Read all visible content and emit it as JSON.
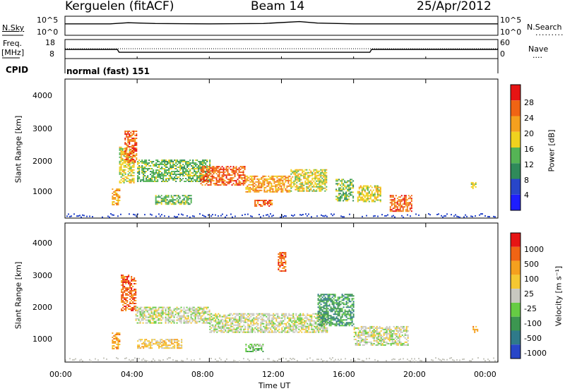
{
  "header": {
    "station": "Kerguelen (fitACF)",
    "beam": "Beam 14",
    "date": "25/Apr/2012"
  },
  "noise_panel": {
    "left_label": "N.Sky",
    "right_label": "N.Search",
    "left_ticks": [
      "10^5",
      "10^0"
    ],
    "right_ticks": [
      "10^5",
      "10^0"
    ]
  },
  "freq_panel": {
    "left_label_top": "Freq.",
    "left_label_bottom": "[MHz]",
    "left_ticks": [
      "18",
      "8"
    ],
    "right_label": "Nave",
    "right_ticks": [
      "60",
      "0"
    ]
  },
  "cpid": {
    "label": "CPID",
    "value": "normal (fast) 151"
  },
  "power_panel": {
    "ylabel": "Slant Range [km]",
    "yticks": [
      "4000",
      "3000",
      "2000",
      "1000"
    ],
    "colorbar_label": "Power [dB]",
    "colorbar_ticks": [
      "28",
      "24",
      "20",
      "16",
      "12",
      "8",
      "4"
    ],
    "colors": [
      "#1e1eff",
      "#2846c8",
      "#2f8a5a",
      "#55b455",
      "#f0d21e",
      "#f5a01e",
      "#f06414",
      "#e61414"
    ]
  },
  "velocity_panel": {
    "ylabel": "Slant Range [km]",
    "yticks": [
      "4000",
      "3000",
      "2000",
      "1000"
    ],
    "colorbar_label": "Velocity [m s⁻¹]",
    "colorbar_ticks": [
      "1000",
      "500",
      "100",
      "25",
      "-25",
      "-100",
      "-500",
      "-1000"
    ],
    "colors": [
      "#2846c8",
      "#2f7a8a",
      "#3c9650",
      "#66cc44",
      "#c8c8c0",
      "#f5c832",
      "#f5a01e",
      "#f06414",
      "#e61414"
    ]
  },
  "time_axis": {
    "xlabel": "Time UT",
    "ticks": [
      "00:00",
      "04:00",
      "08:00",
      "12:00",
      "16:00",
      "20:00",
      "00:00"
    ]
  },
  "chart_data": [
    {
      "type": "line",
      "series": [
        {
          "name": "N.Sky",
          "x": [
            0,
            2.5,
            3.5,
            5,
            8,
            11,
            13,
            14,
            16,
            20,
            24
          ],
          "y": [
            3,
            3,
            3.3,
            3.1,
            3,
            3.1,
            3.6,
            3.2,
            3,
            3,
            3
          ]
        }
      ],
      "x_unit": "hours UT",
      "ylim": [
        0,
        5
      ],
      "log_scale": true
    },
    {
      "type": "line",
      "series": [
        {
          "name": "Freq.",
          "x": [
            0,
            2.9,
            3.0,
            16.9,
            17.0,
            24
          ],
          "y": [
            12.8,
            12.8,
            11.3,
            11.3,
            12.8,
            12.8
          ]
        }
      ],
      "x_unit": "hours UT",
      "ylim": [
        8,
        18
      ]
    },
    {
      "type": "heatmap",
      "title": "Power [dB]",
      "xlim": [
        0,
        24
      ],
      "ylim": [
        180,
        4500
      ],
      "scale": [
        4,
        8,
        12,
        16,
        20,
        24,
        28
      ],
      "regions": [
        {
          "t0": 2.6,
          "t1": 3.0,
          "r0": 600,
          "r1": 1100,
          "level": 5
        },
        {
          "t0": 3.0,
          "t1": 3.8,
          "r0": 1300,
          "r1": 2400,
          "level": 4
        },
        {
          "t0": 3.3,
          "t1": 4.0,
          "r0": 1900,
          "r1": 2900,
          "level": 6
        },
        {
          "t0": 4.0,
          "t1": 8.0,
          "r0": 1300,
          "r1": 2000,
          "level": 3
        },
        {
          "t0": 7.5,
          "t1": 10.0,
          "r0": 1200,
          "r1": 1800,
          "level": 6
        },
        {
          "t0": 10.0,
          "t1": 12.5,
          "r0": 1000,
          "r1": 1500,
          "level": 5
        },
        {
          "t0": 12.5,
          "t1": 14.5,
          "r0": 1000,
          "r1": 1700,
          "level": 4
        },
        {
          "t0": 5.0,
          "t1": 7.0,
          "r0": 600,
          "r1": 900,
          "level": 3
        },
        {
          "t0": 10.5,
          "t1": 11.5,
          "r0": 550,
          "r1": 750,
          "level": 6
        },
        {
          "t0": 15.0,
          "t1": 16.0,
          "r0": 700,
          "r1": 1400,
          "level": 3
        },
        {
          "t0": 16.2,
          "t1": 17.5,
          "r0": 700,
          "r1": 1200,
          "level": 4
        },
        {
          "t0": 18.0,
          "t1": 19.2,
          "r0": 400,
          "r1": 900,
          "level": 6
        },
        {
          "t0": 22.5,
          "t1": 22.8,
          "r0": 1100,
          "r1": 1300,
          "level": 4
        }
      ]
    },
    {
      "type": "heatmap",
      "title": "Velocity [m s⁻¹]",
      "xlim": [
        0,
        24
      ],
      "ylim": [
        180,
        4500
      ],
      "scale": [
        1000,
        500,
        100,
        25,
        -25,
        -100,
        -500,
        -1000
      ],
      "regions": [
        {
          "t0": 2.6,
          "t1": 3.0,
          "r0": 600,
          "r1": 1100,
          "level": 6
        },
        {
          "t0": 3.1,
          "t1": 3.9,
          "r0": 1800,
          "r1": 2900,
          "level": 7
        },
        {
          "t0": 3.9,
          "t1": 8.0,
          "r0": 1400,
          "r1": 1900,
          "level": 4
        },
        {
          "t0": 8.0,
          "t1": 14.5,
          "r0": 1100,
          "r1": 1700,
          "level": 4
        },
        {
          "t0": 4.0,
          "t1": 6.5,
          "r0": 600,
          "r1": 900,
          "level": 5
        },
        {
          "t0": 10.0,
          "t1": 11.0,
          "r0": 500,
          "r1": 750,
          "level": 3
        },
        {
          "t0": 14.0,
          "t1": 16.0,
          "r0": 1300,
          "r1": 2300,
          "level": 2
        },
        {
          "t0": 16.0,
          "t1": 19.0,
          "r0": 700,
          "r1": 1300,
          "level": 4
        },
        {
          "t0": 11.8,
          "t1": 12.2,
          "r0": 3000,
          "r1": 3600,
          "level": 7
        },
        {
          "t0": 22.6,
          "t1": 22.9,
          "r0": 1100,
          "r1": 1300,
          "level": 6
        }
      ]
    }
  ]
}
